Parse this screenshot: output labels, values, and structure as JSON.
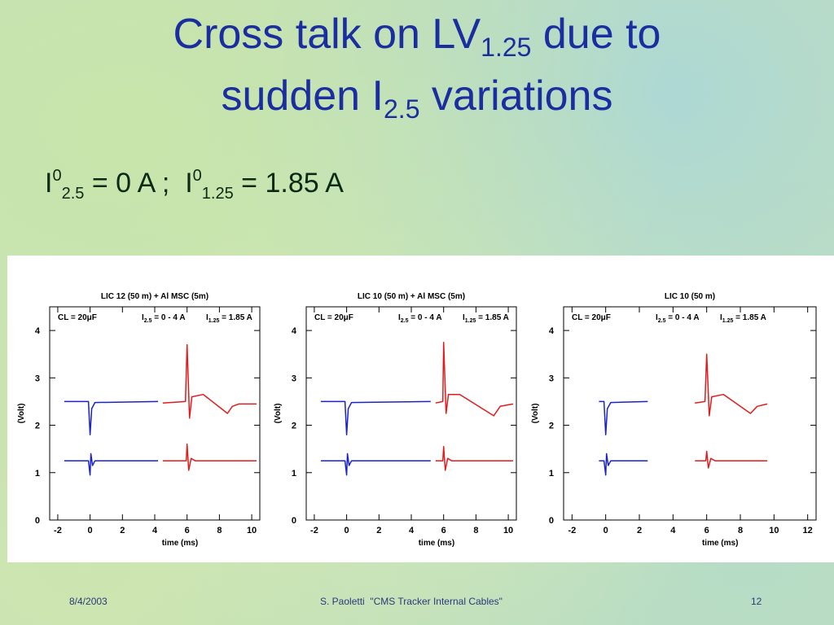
{
  "slide": {
    "title_line1_a": "Cross talk on LV",
    "title_line1_sub": "1.25",
    "title_line1_b": " due to",
    "title_line2_a": "sudden I",
    "title_line2_sub": "2.5",
    "title_line2_b": " variations",
    "formula": {
      "i1": "I",
      "sup1": "0",
      "sub1": "2.5",
      "mid": " = 0 A ;  ",
      "i2": "I",
      "sup2": "0",
      "sub2": "1.25",
      "end": " = 1.85 A"
    },
    "footer": {
      "date": "8/4/2003",
      "center": "S. Paoletti  \"CMS Tracker Internal Cables\"",
      "page": "12"
    }
  },
  "chart_data": [
    {
      "type": "line",
      "title": "LIC 12 (50 m) + Al MSC (5m)",
      "annotation": {
        "cl": "CL = 20μF",
        "i25": "I2.5 = 0 - 4 A",
        "i125": "I1.25 = 1.85 A"
      },
      "xlabel": "time (ms)",
      "ylabel": "(Volt)",
      "xlim": [
        -2.5,
        10.5
      ],
      "ylim": [
        0,
        4.5
      ],
      "xticks": [
        -2,
        0,
        2,
        4,
        6,
        8,
        10
      ],
      "yticks": [
        0,
        1,
        2,
        3,
        4
      ],
      "series": [
        {
          "color": "#1a22c8",
          "points": [
            [
              -1.6,
              2.5
            ],
            [
              -0.1,
              2.5
            ],
            [
              0,
              1.8
            ],
            [
              0.1,
              2.35
            ],
            [
              0.3,
              2.48
            ],
            [
              4.2,
              2.5
            ]
          ]
        },
        {
          "color": "#1a22c8",
          "points": [
            [
              -1.6,
              1.25
            ],
            [
              -0.1,
              1.25
            ],
            [
              0,
              0.95
            ],
            [
              0.05,
              1.4
            ],
            [
              0.15,
              1.15
            ],
            [
              0.3,
              1.25
            ],
            [
              4.2,
              1.25
            ]
          ]
        },
        {
          "color": "#e01c1c",
          "points": [
            [
              4.5,
              2.47
            ],
            [
              5.9,
              2.5
            ],
            [
              6.0,
              3.7
            ],
            [
              6.15,
              2.15
            ],
            [
              6.3,
              2.6
            ],
            [
              7.0,
              2.65
            ],
            [
              8.5,
              2.25
            ],
            [
              8.8,
              2.4
            ],
            [
              9.2,
              2.45
            ],
            [
              10.3,
              2.45
            ]
          ]
        },
        {
          "color": "#e01c1c",
          "points": [
            [
              4.5,
              1.25
            ],
            [
              5.95,
              1.25
            ],
            [
              6.0,
              1.6
            ],
            [
              6.1,
              1.05
            ],
            [
              6.25,
              1.3
            ],
            [
              6.5,
              1.25
            ],
            [
              10.3,
              1.25
            ]
          ]
        }
      ]
    },
    {
      "type": "line",
      "title": "LIC 10 (50 m) + Al MSC (5m)",
      "annotation": {
        "cl": "CL = 20μF",
        "i25": "I2.5 = 0 - 4 A",
        "i125": "I1.25 = 1.85 A"
      },
      "xlabel": "time (ms)",
      "ylabel": "(Volt)",
      "xlim": [
        -2.5,
        10.5
      ],
      "ylim": [
        0,
        4.5
      ],
      "xticks": [
        -2,
        0,
        2,
        4,
        6,
        8,
        10
      ],
      "yticks": [
        0,
        1,
        2,
        3,
        4
      ],
      "series": [
        {
          "color": "#1a22c8",
          "points": [
            [
              -1.6,
              2.5
            ],
            [
              -0.1,
              2.5
            ],
            [
              0,
              1.8
            ],
            [
              0.1,
              2.35
            ],
            [
              0.3,
              2.48
            ],
            [
              5.2,
              2.5
            ]
          ]
        },
        {
          "color": "#1a22c8",
          "points": [
            [
              -1.6,
              1.25
            ],
            [
              -0.1,
              1.25
            ],
            [
              0,
              0.95
            ],
            [
              0.05,
              1.4
            ],
            [
              0.15,
              1.15
            ],
            [
              0.3,
              1.25
            ],
            [
              5.2,
              1.25
            ]
          ]
        },
        {
          "color": "#e01c1c",
          "points": [
            [
              5.5,
              2.47
            ],
            [
              5.95,
              2.5
            ],
            [
              6.0,
              3.75
            ],
            [
              6.15,
              2.25
            ],
            [
              6.3,
              2.65
            ],
            [
              7.0,
              2.65
            ],
            [
              9.1,
              2.2
            ],
            [
              9.5,
              2.4
            ],
            [
              10.3,
              2.45
            ]
          ]
        },
        {
          "color": "#e01c1c",
          "points": [
            [
              5.5,
              1.25
            ],
            [
              5.95,
              1.25
            ],
            [
              6.0,
              1.55
            ],
            [
              6.1,
              1.05
            ],
            [
              6.25,
              1.3
            ],
            [
              6.5,
              1.25
            ],
            [
              10.3,
              1.25
            ]
          ]
        }
      ]
    },
    {
      "type": "line",
      "title": "LIC 10 (50 m)",
      "annotation": {
        "cl": "CL = 20μF",
        "i25": "I2.5 = 0 - 4 A",
        "i125": "I1.25 = 1.85 A"
      },
      "xlabel": "time (ms)",
      "ylabel": "(Volt)",
      "xlim": [
        -2.5,
        12.5
      ],
      "ylim": [
        0,
        4.5
      ],
      "xticks": [
        -2,
        0,
        2,
        4,
        6,
        8,
        10,
        12
      ],
      "yticks": [
        0,
        1,
        2,
        3,
        4
      ],
      "series": [
        {
          "color": "#1a22c8",
          "points": [
            [
              -0.4,
              2.5
            ],
            [
              -0.1,
              2.5
            ],
            [
              0,
              1.8
            ],
            [
              0.1,
              2.35
            ],
            [
              0.3,
              2.48
            ],
            [
              2.5,
              2.5
            ]
          ]
        },
        {
          "color": "#1a22c8",
          "points": [
            [
              -0.4,
              1.25
            ],
            [
              -0.1,
              1.25
            ],
            [
              0,
              0.95
            ],
            [
              0.05,
              1.4
            ],
            [
              0.15,
              1.15
            ],
            [
              0.3,
              1.25
            ],
            [
              2.5,
              1.25
            ]
          ]
        },
        {
          "color": "#e01c1c",
          "points": [
            [
              5.3,
              2.47
            ],
            [
              5.9,
              2.5
            ],
            [
              6.0,
              3.5
            ],
            [
              6.15,
              2.2
            ],
            [
              6.3,
              2.6
            ],
            [
              7.0,
              2.65
            ],
            [
              8.6,
              2.25
            ],
            [
              9.0,
              2.4
            ],
            [
              9.6,
              2.45
            ]
          ]
        },
        {
          "color": "#e01c1c",
          "points": [
            [
              5.3,
              1.25
            ],
            [
              5.95,
              1.25
            ],
            [
              6.0,
              1.45
            ],
            [
              6.1,
              1.1
            ],
            [
              6.25,
              1.3
            ],
            [
              6.5,
              1.25
            ],
            [
              9.6,
              1.25
            ]
          ]
        }
      ]
    }
  ]
}
